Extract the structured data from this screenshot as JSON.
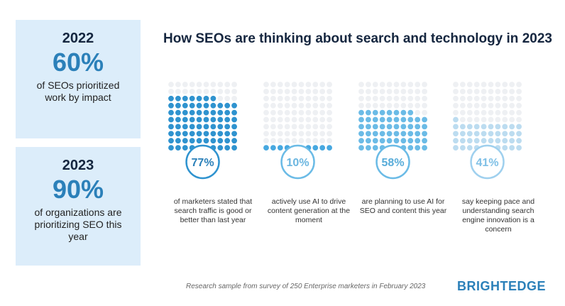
{
  "stats": [
    {
      "year": "2022",
      "percent": "60%",
      "description": "of SEOs prioritized work by impact"
    },
    {
      "year": "2023",
      "percent": "90%",
      "description": "of organizations are prioritizing SEO this year"
    }
  ],
  "chart_data": {
    "type": "dot-matrix",
    "title": "How SEOs are thinking about search and technology in 2023",
    "grid": {
      "rows": 10,
      "cols": 10
    },
    "values": [
      77,
      10,
      58,
      41
    ],
    "labels": [
      "77%",
      "10%",
      "58%",
      "41%"
    ],
    "descriptions": [
      "of marketers stated that search traffic is good or better than last year",
      "actively use AI to drive content generation at the moment",
      "are planning to use AI for SEO and content this year",
      "say keeping pace and understanding search engine innovation is a concern"
    ],
    "colors": {
      "filled": [
        "#2f93cf",
        "#47a8e0",
        "#6bbbe6",
        "#bcdcf0"
      ],
      "empty": "#eef0f3",
      "circle_border": [
        "#2f93cf",
        "#6bbbe6",
        "#6bbbe6",
        "#9fd0ee"
      ],
      "label": [
        "#2b80b9",
        "#6bb6e0",
        "#58acd9",
        "#7fc0e6"
      ]
    }
  },
  "footnote": "Research sample from survey of 250 Enterprise marketers in February 2023",
  "brand": "BRIGHTEDGE"
}
